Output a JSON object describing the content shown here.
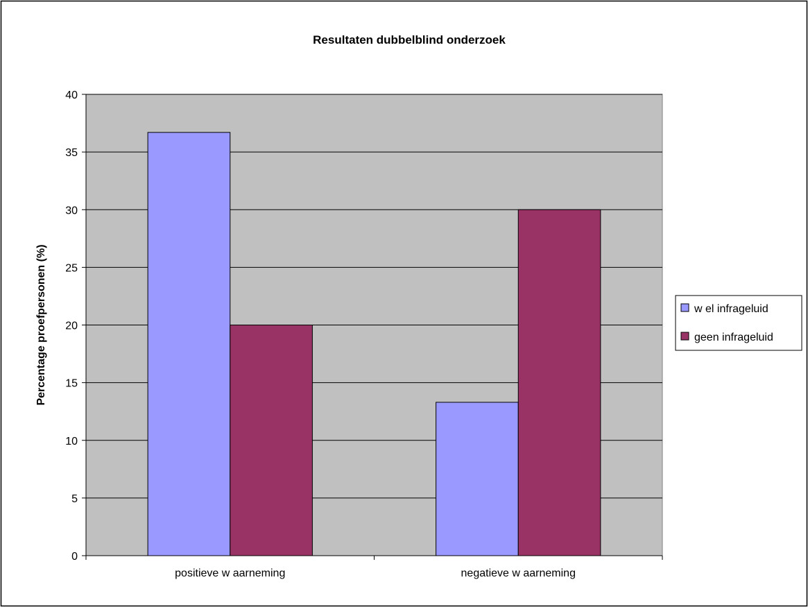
{
  "chart_data": {
    "type": "bar",
    "title": "Resultaten dubbelblind onderzoek",
    "xlabel": "",
    "ylabel": "Percentage proefpersonen (%)",
    "ylim": [
      0,
      40
    ],
    "yticks": [
      "0",
      "5",
      "10",
      "15",
      "20",
      "25",
      "30",
      "35",
      "40"
    ],
    "categories": [
      "positieve w aarneming",
      "negatieve w aarneming"
    ],
    "series": [
      {
        "name": "w el infrageluid",
        "values": [
          36.7,
          13.3
        ],
        "color": "#9999ff"
      },
      {
        "name": "geen infrageluid",
        "values": [
          20.0,
          30.0
        ],
        "color": "#993366"
      }
    ],
    "grid": true,
    "legend_position": "right",
    "plot_background": "#c0c0c0"
  }
}
